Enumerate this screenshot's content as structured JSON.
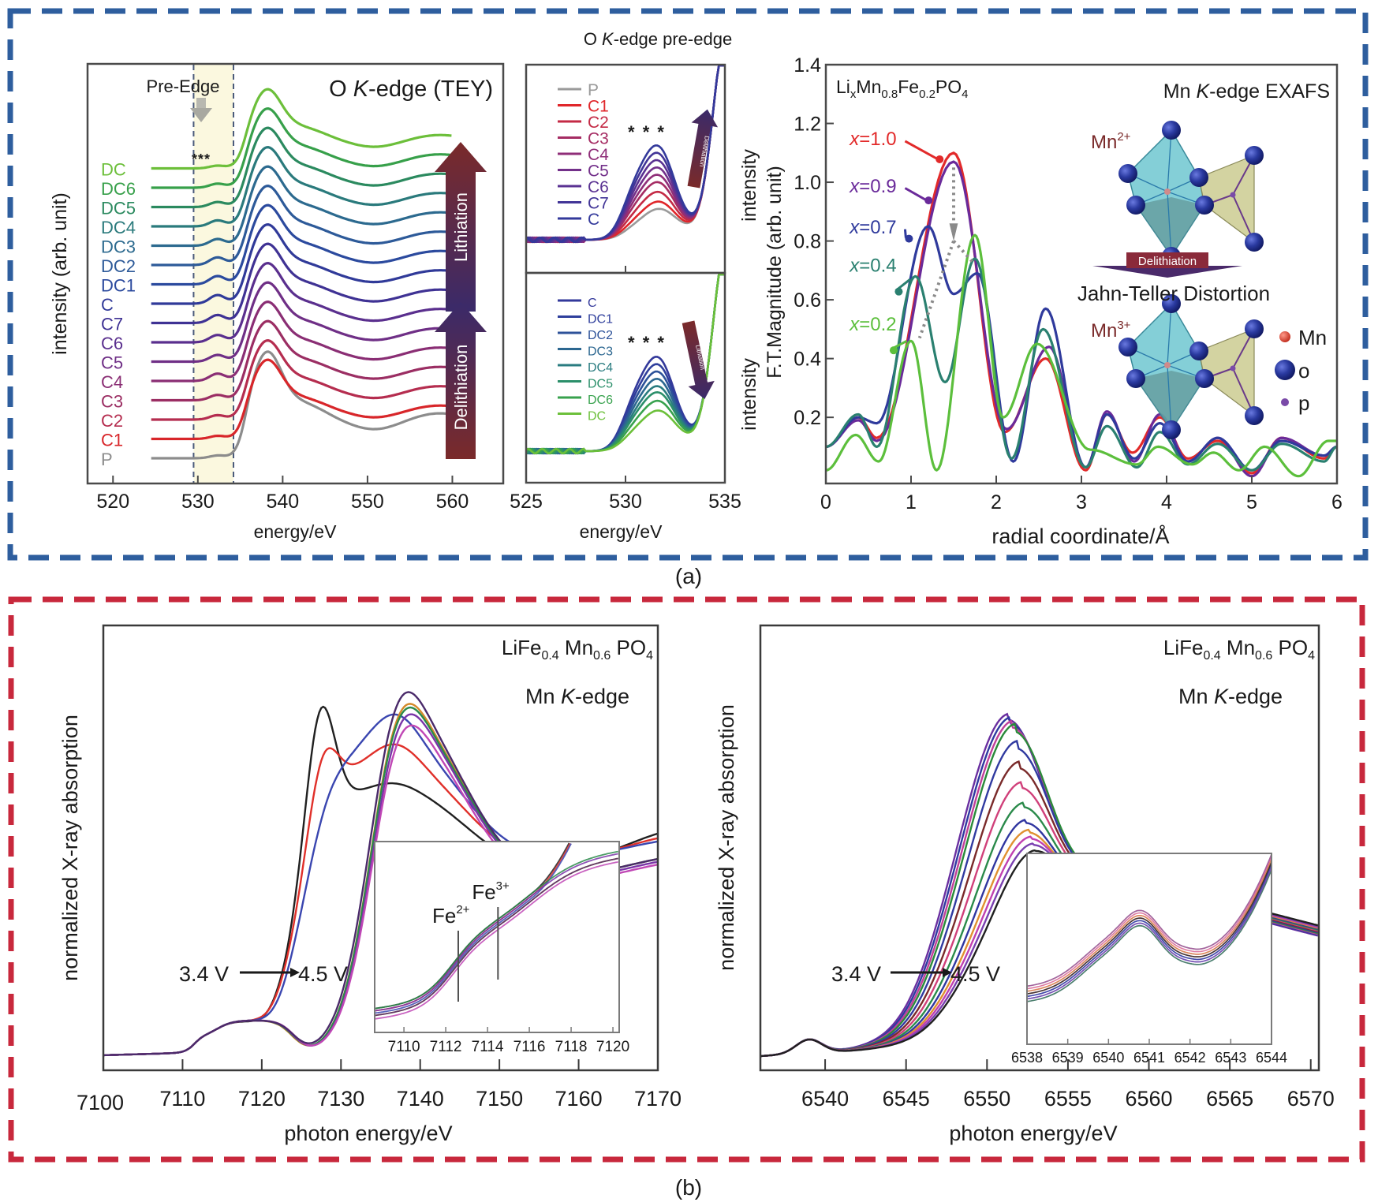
{
  "figure": {
    "panel_a_label": "(a)",
    "panel_b_label": "(b)",
    "panel_a_border_color": "#2e5e9e",
    "panel_b_border_color": "#c8283c"
  },
  "chart_data": [
    {
      "id": "o-kedge-tey",
      "type": "line",
      "title": "O K-edge (TEY)",
      "title_parts": [
        "O ",
        "K",
        "-edge (TEY)"
      ],
      "xlabel": "energy/eV",
      "ylabel": "intensity (arb. unit)",
      "xlim": [
        517,
        566
      ],
      "xticks": [
        520,
        530,
        540,
        550,
        560
      ],
      "yticks_shown": false,
      "pre_edge_label": "Pre-Edge",
      "pre_edge_range": [
        529.5,
        534.2
      ],
      "pre_edge_stars": "***",
      "annotations": {
        "lithiation": "Lithiation",
        "delithiation": "Delithiation"
      },
      "x_start": 524.5,
      "x_end": 560,
      "series": [
        {
          "name": "P",
          "color": "#8c8c8c",
          "offset": 0,
          "preedge": 0.6
        },
        {
          "name": "C1",
          "color": "#d8262a",
          "offset": 1,
          "preedge": 0.9
        },
        {
          "name": "C2",
          "color": "#b52d4f",
          "offset": 2,
          "preedge": 1.3
        },
        {
          "name": "C3",
          "color": "#9b2e63",
          "offset": 3,
          "preedge": 1.6
        },
        {
          "name": "C4",
          "color": "#8a2e74",
          "offset": 4,
          "preedge": 2.2
        },
        {
          "name": "C5",
          "color": "#6f2f86",
          "offset": 5,
          "preedge": 2.0
        },
        {
          "name": "C6",
          "color": "#5a2f8e",
          "offset": 6,
          "preedge": 2.2
        },
        {
          "name": "C7",
          "color": "#3f3294",
          "offset": 7,
          "preedge": 2.4
        },
        {
          "name": "C",
          "color": "#303a99",
          "offset": 8,
          "preedge": 2.6
        },
        {
          "name": "DC1",
          "color": "#2b4a9e",
          "offset": 9,
          "preedge": 2.5
        },
        {
          "name": "DC2",
          "color": "#2d5a99",
          "offset": 10,
          "preedge": 2.3
        },
        {
          "name": "DC3",
          "color": "#2c6a8f",
          "offset": 11,
          "preedge": 2.0
        },
        {
          "name": "DC4",
          "color": "#2a7a7c",
          "offset": 12,
          "preedge": 1.8
        },
        {
          "name": "DC5",
          "color": "#2b8a5f",
          "offset": 13,
          "preedge": 1.5
        },
        {
          "name": "DC6",
          "color": "#37a04a",
          "offset": 14,
          "preedge": 1.2
        },
        {
          "name": "DC",
          "color": "#6cbf3a",
          "offset": 15,
          "preedge": 0.8
        }
      ]
    },
    {
      "id": "o-kedge-preedge-charge",
      "type": "line",
      "title": "O K-edge pre-edge",
      "title_parts": [
        "O ",
        "K",
        "-edge pre-edge"
      ],
      "xlabel": "energy/eV",
      "ylabel": "intensity",
      "xlim": [
        525,
        535
      ],
      "xticks": [
        525,
        530,
        535
      ],
      "stars": "* * *",
      "arrow_label": "Delithiation",
      "series": [
        {
          "name": "P",
          "color": "#9a9a9a",
          "amp": 0.1
        },
        {
          "name": "C1",
          "color": "#e0262a",
          "amp": 0.16
        },
        {
          "name": "C2",
          "color": "#c42a45",
          "amp": 0.24
        },
        {
          "name": "C3",
          "color": "#a52c63",
          "amp": 0.32
        },
        {
          "name": "C4",
          "color": "#8f2e78",
          "amp": 0.38
        },
        {
          "name": "C5",
          "color": "#73308a",
          "amp": 0.44
        },
        {
          "name": "C6",
          "color": "#5a3292",
          "amp": 0.5
        },
        {
          "name": "C7",
          "color": "#423597",
          "amp": 0.56
        },
        {
          "name": "C",
          "color": "#33399b",
          "amp": 0.62
        }
      ]
    },
    {
      "id": "o-kedge-preedge-discharge",
      "type": "line",
      "xlabel": "energy/eV",
      "ylabel": "intensity",
      "xlim": [
        525,
        535
      ],
      "xticks": [
        525,
        530,
        535
      ],
      "stars": "* * *",
      "arrow_label": "Lithiation",
      "series": [
        {
          "name": "C",
          "color": "#33399b",
          "amp": 0.62
        },
        {
          "name": "DC1",
          "color": "#2f3f9c",
          "amp": 0.56
        },
        {
          "name": "DC2",
          "color": "#2d5299",
          "amp": 0.5
        },
        {
          "name": "DC3",
          "color": "#2c6790",
          "amp": 0.44
        },
        {
          "name": "DC4",
          "color": "#2a7c80",
          "amp": 0.38
        },
        {
          "name": "DC5",
          "color": "#2b8f6a",
          "amp": 0.33
        },
        {
          "name": "DC6",
          "color": "#38a24e",
          "amp": 0.26
        },
        {
          "name": "DC",
          "color": "#6cc03a",
          "amp": 0.18
        }
      ]
    },
    {
      "id": "mn-kedge-exafs",
      "type": "line",
      "title": "Mn K-edge EXAFS",
      "title_parts": [
        "Mn ",
        "K",
        "-edge EXAFS"
      ],
      "compound": "LixMn0.8Fe0.2PO4",
      "xlabel": "radial coordinate/Å",
      "ylabel": "F.T.Magnitude (arb. unit)",
      "xlim": [
        0,
        6
      ],
      "ylim": [
        -0.025,
        1.4
      ],
      "xticks": [
        0,
        1,
        2,
        3,
        4,
        5,
        6
      ],
      "yticks": [
        0.2,
        0.4,
        0.6,
        0.8,
        1.0,
        1.2,
        1.4
      ],
      "ytick_labels": [
        "0.2",
        "0.4",
        "0.6",
        "0.8",
        "1.0",
        "1.2",
        "1.4"
      ],
      "structure_labels": {
        "mn2": "Mn",
        "mn2_sup": "2+",
        "mn3": "Mn",
        "mn3_sup": "3+",
        "arrow": "Delithiation",
        "distortion": "Jahn-Teller Distortion"
      },
      "legend": [
        {
          "label": "Mn",
          "color": "#d8342a"
        },
        {
          "label": "o",
          "color": "#23308f"
        },
        {
          "label": "p",
          "color": "#7a4aa8"
        }
      ],
      "series": [
        {
          "name": "x=1.0",
          "x_value": "1.0",
          "color": "#e22a2a",
          "peaks": [
            [
              0.38,
              0.2
            ],
            [
              1.5,
              1.1
            ],
            [
              2.58,
              0.4
            ],
            [
              3.3,
              0.21
            ],
            [
              3.92,
              0.2
            ],
            [
              4.6,
              0.12
            ],
            [
              5.35,
              0.13
            ]
          ],
          "troughs": [
            [
              0.6,
              0.13
            ],
            [
              2.1,
              0.15
            ],
            [
              3.05,
              0.02
            ],
            [
              3.6,
              0.08
            ],
            [
              4.25,
              0.06
            ],
            [
              5.0,
              0.01
            ],
            [
              5.85,
              0.06
            ]
          ]
        },
        {
          "name": "x=0.9",
          "x_value": "0.9",
          "color": "#6a2a9a",
          "peaks": [
            [
              0.38,
              0.19
            ],
            [
              1.5,
              1.07
            ],
            [
              2.62,
              0.44
            ],
            [
              3.3,
              0.22
            ],
            [
              3.92,
              0.21
            ],
            [
              4.6,
              0.13
            ],
            [
              5.35,
              0.13
            ]
          ],
          "troughs": [
            [
              0.6,
              0.12
            ],
            [
              2.12,
              0.16
            ],
            [
              3.05,
              0.03
            ],
            [
              3.62,
              0.05
            ],
            [
              4.25,
              0.05
            ],
            [
              5.0,
              0.0
            ],
            [
              5.85,
              0.07
            ]
          ]
        },
        {
          "name": "x=0.7",
          "x_value": "0.7",
          "color": "#2f3a9c",
          "peaks": [
            [
              0.38,
              0.2
            ],
            [
              1.2,
              0.85
            ],
            [
              1.78,
              0.69
            ],
            [
              2.58,
              0.57
            ],
            [
              3.3,
              0.21
            ],
            [
              3.92,
              0.18
            ],
            [
              4.6,
              0.13
            ],
            [
              5.35,
              0.12
            ]
          ],
          "troughs": [
            [
              0.6,
              0.18
            ],
            [
              1.5,
              0.62
            ],
            [
              2.2,
              0.05
            ],
            [
              3.05,
              0.03
            ],
            [
              3.62,
              0.06
            ],
            [
              4.25,
              0.05
            ],
            [
              5.0,
              0.02
            ],
            [
              5.85,
              0.07
            ]
          ]
        },
        {
          "name": "x=0.4",
          "x_value": "0.4",
          "color": "#2a8070",
          "peaks": [
            [
              0.38,
              0.21
            ],
            [
              1.05,
              0.68
            ],
            [
              1.75,
              0.74
            ],
            [
              2.55,
              0.5
            ],
            [
              3.3,
              0.17
            ],
            [
              3.92,
              0.15
            ],
            [
              4.6,
              0.11
            ],
            [
              5.35,
              0.11
            ]
          ],
          "troughs": [
            [
              0.6,
              0.1
            ],
            [
              1.4,
              0.32
            ],
            [
              2.18,
              0.06
            ],
            [
              3.05,
              0.03
            ],
            [
              3.65,
              0.03
            ],
            [
              4.25,
              0.04
            ],
            [
              5.0,
              0.02
            ],
            [
              5.85,
              0.05
            ]
          ]
        },
        {
          "name": "x=0.2",
          "x_value": "0.2",
          "color": "#5cbf3c",
          "peaks": [
            [
              0.35,
              0.14
            ],
            [
              1.0,
              0.46
            ],
            [
              1.75,
              0.82
            ],
            [
              2.48,
              0.45
            ],
            [
              3.1,
              0.09
            ],
            [
              3.9,
              0.1
            ],
            [
              4.55,
              0.08
            ],
            [
              5.15,
              0.1
            ],
            [
              5.9,
              0.12
            ]
          ],
          "troughs": [
            [
              0.62,
              0.05
            ],
            [
              1.3,
              0.02
            ],
            [
              2.08,
              0.2
            ],
            [
              3.65,
              0.04
            ],
            [
              4.3,
              0.04
            ],
            [
              4.85,
              0.02
            ],
            [
              5.55,
              0.0
            ]
          ]
        }
      ]
    },
    {
      "id": "mn-kedge-xanes-left",
      "type": "line",
      "title": "Mn K-edge",
      "title_parts": [
        "Mn ",
        "K",
        "-edge"
      ],
      "compound_parts": [
        "LiFe",
        "0.4",
        " Mn",
        "0.6",
        " PO",
        "4"
      ],
      "xlabel": "photon energy/eV",
      "ylabel": "normalized X-ray absorption",
      "xlim": [
        7100,
        7170
      ],
      "xticks": [
        7100,
        7110,
        7120,
        7130,
        7140,
        7150,
        7160,
        7170
      ],
      "voltage_start": "3.4 V",
      "voltage_end": "4.5 V",
      "series": [
        {
          "name": "3.4 V (black)",
          "color": "#202020",
          "edge": 7119.5,
          "wl_x": 7127.3,
          "wl_y": 1.45,
          "post_y": 0.98,
          "min_y": 0.68,
          "tail_y": 0.86
        },
        {
          "name": "red",
          "color": "#e0302a",
          "edge": 7120.3,
          "wl_x": 7127.6,
          "wl_y": 1.3,
          "post_y": 1.07,
          "min_y": 0.7,
          "tail_y": 0.83
        },
        {
          "name": "blue",
          "color": "#3a46b0",
          "edge": 7120.8,
          "wl_x": 7128.2,
          "wl_y": 1.16,
          "post_y": 1.14,
          "min_y": 0.71,
          "tail_y": 0.81
        },
        {
          "name": "orange",
          "color": "#d48a2a",
          "edge": 7123.3,
          "wl_x": 7136.8,
          "wl_y": 1.28,
          "post_y": 1.28,
          "min_y": 0.64,
          "tail_y": 0.75
        },
        {
          "name": "green",
          "color": "#2a8a4a",
          "edge": 7123.4,
          "wl_x": 7136.8,
          "wl_y": 1.27,
          "post_y": 1.27,
          "min_y": 0.64,
          "tail_y": 0.75
        },
        {
          "name": "purple",
          "color": "#7a35a8",
          "edge": 7123.5,
          "wl_x": 7137.0,
          "wl_y": 1.26,
          "post_y": 1.26,
          "min_y": 0.63,
          "tail_y": 0.74
        },
        {
          "name": "magenta",
          "color": "#c047b5",
          "edge": 7123.6,
          "wl_x": 7137.0,
          "wl_y": 1.23,
          "post_y": 1.23,
          "min_y": 0.62,
          "tail_y": 0.73
        },
        {
          "name": "4.5 V (dark)",
          "color": "#4a2a6a",
          "edge": 7123.5,
          "wl_x": 7136.5,
          "wl_y": 1.3,
          "post_y": 1.3,
          "min_y": 0.64,
          "tail_y": 0.75
        }
      ],
      "inset": {
        "xlim": [
          7108.6,
          7120.3
        ],
        "xticks": [
          7110,
          7112,
          7114,
          7116,
          7118,
          7120
        ],
        "markers": [
          {
            "label": "Fe",
            "sup": "2+",
            "x": 7112.6
          },
          {
            "label": "Fe",
            "sup": "3+",
            "x": 7114.5
          }
        ]
      }
    },
    {
      "id": "mn-kedge-xanes-right",
      "type": "line",
      "title": "Mn K-edge",
      "title_parts": [
        "Mn ",
        "K",
        "-edge"
      ],
      "compound_parts": [
        "LiFe",
        "0.4",
        " Mn",
        "0.6",
        " PO",
        "4"
      ],
      "xlabel": "photon energy/eV",
      "ylabel": "normalized X-ray absorption",
      "xlim": [
        6536,
        6570.5
      ],
      "xticks": [
        6540,
        6545,
        6550,
        6555,
        6560,
        6565,
        6570
      ],
      "voltage_start": "3.4 V",
      "voltage_end": "4.5 V",
      "series": [
        {
          "name": "s1",
          "color": "#6a2fa0",
          "peak": 1.0
        },
        {
          "name": "s2",
          "color": "#2f3aa0",
          "peak": 0.99
        },
        {
          "name": "s3",
          "color": "#c0409a",
          "peak": 0.98
        },
        {
          "name": "s4",
          "color": "#2a8a3a",
          "peak": 0.97
        },
        {
          "name": "s5",
          "color": "#303aa0",
          "peak": 0.92
        },
        {
          "name": "s6",
          "color": "#7a2a2a",
          "peak": 0.86
        },
        {
          "name": "s7",
          "color": "#d0407a",
          "peak": 0.8
        },
        {
          "name": "s8",
          "color": "#2a8a4a",
          "peak": 0.74
        },
        {
          "name": "s9",
          "color": "#3036a0",
          "peak": 0.69
        },
        {
          "name": "s10",
          "color": "#e09030",
          "peak": 0.66
        },
        {
          "name": "s11",
          "color": "#c040b0",
          "peak": 0.64
        },
        {
          "name": "s12",
          "color": "#7a40b0",
          "peak": 0.62
        },
        {
          "name": "s13",
          "color": "#202020",
          "peak": 0.6
        }
      ],
      "inset": {
        "xlim": [
          6538,
          6544
        ],
        "xticks": [
          6538,
          6539,
          6540,
          6541,
          6542,
          6543,
          6544
        ]
      }
    }
  ]
}
